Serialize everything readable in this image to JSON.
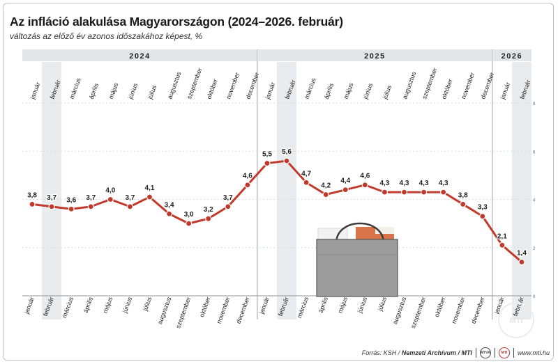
{
  "title": "Az infláció alakulása Magyarországon (2024–2026. február)",
  "subtitle": "változás az előző év azonos időszakához képest, %",
  "footer": {
    "source_prefix": "Forrás: KSH / ",
    "source_bold": "Nemzeti Archívum / MTI",
    "logo1": "MTVA",
    "logo2": "MTI",
    "url": "www.mti.hu"
  },
  "watermark": "MTI",
  "colors": {
    "line": "#c0392b",
    "band": "#e9ecee",
    "year_bar": "#e3e6e8",
    "grid": "#cfd3d6"
  },
  "chart_data": {
    "type": "line",
    "years": [
      {
        "label": "2024",
        "months": 12
      },
      {
        "label": "2025",
        "months": 12
      },
      {
        "label": "2026",
        "months": 2
      }
    ],
    "categories": [
      "január",
      "február",
      "március",
      "április",
      "május",
      "június",
      "július",
      "augusztus",
      "szeptember",
      "október",
      "november",
      "december",
      "január",
      "február",
      "március",
      "április",
      "május",
      "június",
      "július",
      "augusztus",
      "szeptember",
      "október",
      "november",
      "december",
      "január",
      "február"
    ],
    "values": [
      3.8,
      3.7,
      3.6,
      3.7,
      4.0,
      3.7,
      4.1,
      3.4,
      3.0,
      3.2,
      3.7,
      4.6,
      5.5,
      5.6,
      4.7,
      4.2,
      4.4,
      4.6,
      4.3,
      4.3,
      4.3,
      4.3,
      3.8,
      3.3,
      2.1,
      1.4
    ],
    "labels": [
      "3,8",
      "3,7",
      "3,6",
      "3,7",
      "4,0",
      "3,7",
      "4,1",
      "3,4",
      "3,0",
      "3,2",
      "3,7",
      "4,6",
      "5,5",
      "5,6",
      "4,7",
      "4,2",
      "4,4",
      "4,6",
      "4,3",
      "4,3",
      "4,3",
      "4,3",
      "3,8",
      "3,3",
      "2,1",
      "1,4"
    ],
    "y_ticks": [
      "0",
      "2",
      "4",
      "6",
      "8"
    ],
    "ylim": [
      0,
      8
    ],
    "grid": true,
    "shaded_months": [
      "február"
    ]
  }
}
